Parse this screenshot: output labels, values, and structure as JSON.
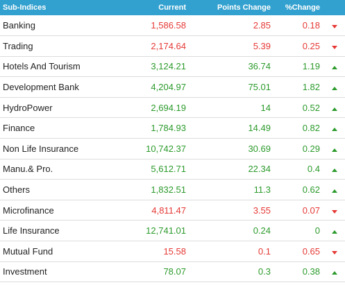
{
  "headers": {
    "name": "Sub-Indices",
    "current": "Current",
    "points": "Points Change",
    "pct": "%Change"
  },
  "colors": {
    "header_bg": "#33a1cf",
    "up": "#2b9a2b",
    "down": "#e53935"
  },
  "rows": [
    {
      "name": "Banking",
      "current": "1,586.58",
      "points": "2.85",
      "pct": "0.18",
      "dir": "down"
    },
    {
      "name": "Trading",
      "current": "2,174.64",
      "points": "5.39",
      "pct": "0.25",
      "dir": "down"
    },
    {
      "name": "Hotels And Tourism",
      "current": "3,124.21",
      "points": "36.74",
      "pct": "1.19",
      "dir": "up"
    },
    {
      "name": "Development Bank",
      "current": "4,204.97",
      "points": "75.01",
      "pct": "1.82",
      "dir": "up"
    },
    {
      "name": "HydroPower",
      "current": "2,694.19",
      "points": "14",
      "pct": "0.52",
      "dir": "up"
    },
    {
      "name": "Finance",
      "current": "1,784.93",
      "points": "14.49",
      "pct": "0.82",
      "dir": "up"
    },
    {
      "name": "Non Life Insurance",
      "current": "10,742.37",
      "points": "30.69",
      "pct": "0.29",
      "dir": "up"
    },
    {
      "name": "Manu.& Pro.",
      "current": "5,612.71",
      "points": "22.34",
      "pct": "0.4",
      "dir": "up"
    },
    {
      "name": "Others",
      "current": "1,832.51",
      "points": "11.3",
      "pct": "0.62",
      "dir": "up"
    },
    {
      "name": "Microfinance",
      "current": "4,811.47",
      "points": "3.55",
      "pct": "0.07",
      "dir": "down"
    },
    {
      "name": "Life Insurance",
      "current": "12,741.01",
      "points": "0.24",
      "pct": "0",
      "dir": "up"
    },
    {
      "name": "Mutual Fund",
      "current": "15.58",
      "points": "0.1",
      "pct": "0.65",
      "dir": "down"
    },
    {
      "name": "Investment",
      "current": "78.07",
      "points": "0.3",
      "pct": "0.38",
      "dir": "up"
    }
  ]
}
